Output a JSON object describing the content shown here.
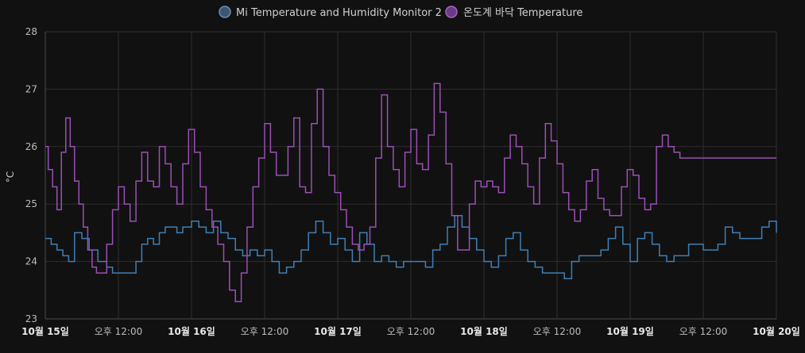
{
  "chart_data": {
    "type": "line",
    "step": true,
    "ylabel": "°C",
    "ylim": [
      23,
      28
    ],
    "yticks": [
      23,
      24,
      25,
      26,
      27,
      28
    ],
    "xlim": [
      0,
      5
    ],
    "x_unit": "days since 10월 15일 00:00",
    "x_ticks": [
      {
        "x": 0.0,
        "label": "10월 15일",
        "bold": true
      },
      {
        "x": 0.5,
        "label": "오후 12:00",
        "bold": false
      },
      {
        "x": 1.0,
        "label": "10월 16일",
        "bold": true
      },
      {
        "x": 1.5,
        "label": "오후 12:00",
        "bold": false
      },
      {
        "x": 2.0,
        "label": "10월 17일",
        "bold": true
      },
      {
        "x": 2.5,
        "label": "오후 12:00",
        "bold": false
      },
      {
        "x": 3.0,
        "label": "10월 18일",
        "bold": true
      },
      {
        "x": 3.5,
        "label": "오후 12:00",
        "bold": false
      },
      {
        "x": 4.0,
        "label": "10월 19일",
        "bold": true
      },
      {
        "x": 4.5,
        "label": "오후 12:00",
        "bold": false
      },
      {
        "x": 5.0,
        "label": "10월 20일",
        "bold": true
      }
    ],
    "grid": true,
    "legend_position": "top-center",
    "series": [
      {
        "name": "Mi Temperature and Humidity Monitor 2",
        "color": "#3f7fb5",
        "x": [
          0.0,
          0.04,
          0.08,
          0.12,
          0.16,
          0.2,
          0.25,
          0.3,
          0.36,
          0.42,
          0.46,
          0.5,
          0.54,
          0.58,
          0.62,
          0.66,
          0.7,
          0.74,
          0.78,
          0.82,
          0.86,
          0.9,
          0.94,
          1.0,
          1.05,
          1.1,
          1.15,
          1.2,
          1.25,
          1.3,
          1.35,
          1.4,
          1.45,
          1.5,
          1.55,
          1.6,
          1.65,
          1.7,
          1.75,
          1.8,
          1.85,
          1.9,
          1.95,
          2.0,
          2.05,
          2.1,
          2.15,
          2.2,
          2.25,
          2.3,
          2.35,
          2.4,
          2.45,
          2.5,
          2.55,
          2.6,
          2.65,
          2.7,
          2.75,
          2.8,
          2.85,
          2.9,
          2.95,
          3.0,
          3.05,
          3.1,
          3.15,
          3.2,
          3.25,
          3.3,
          3.35,
          3.4,
          3.45,
          3.5,
          3.55,
          3.6,
          3.65,
          3.7,
          3.75,
          3.8,
          3.85,
          3.9,
          3.95,
          4.0,
          4.05,
          4.1,
          4.15,
          4.2,
          4.25,
          4.3,
          4.35,
          4.4,
          4.45,
          4.5,
          4.55,
          4.6,
          4.65,
          4.7,
          4.75,
          4.8,
          4.85,
          4.9,
          4.95,
          5.0
        ],
        "values": [
          24.4,
          24.3,
          24.2,
          24.1,
          24.0,
          24.5,
          24.4,
          24.2,
          24.0,
          23.9,
          23.8,
          23.8,
          23.8,
          23.8,
          24.0,
          24.3,
          24.4,
          24.3,
          24.5,
          24.6,
          24.6,
          24.5,
          24.6,
          24.7,
          24.6,
          24.5,
          24.7,
          24.5,
          24.4,
          24.2,
          24.1,
          24.2,
          24.1,
          24.2,
          24.0,
          23.8,
          23.9,
          24.0,
          24.2,
          24.5,
          24.7,
          24.5,
          24.3,
          24.4,
          24.2,
          24.0,
          24.5,
          24.3,
          24.0,
          24.1,
          24.0,
          23.9,
          24.0,
          24.0,
          24.0,
          23.9,
          24.2,
          24.3,
          24.6,
          24.8,
          24.6,
          24.4,
          24.2,
          24.0,
          23.9,
          24.1,
          24.4,
          24.5,
          24.2,
          24.0,
          23.9,
          23.8,
          23.8,
          23.8,
          23.7,
          24.0,
          24.1,
          24.1,
          24.1,
          24.2,
          24.4,
          24.6,
          24.3,
          24.0,
          24.4,
          24.5,
          24.3,
          24.1,
          24.0,
          24.1,
          24.1,
          24.3,
          24.3,
          24.2,
          24.2,
          24.3,
          24.6,
          24.5,
          24.4,
          24.4,
          24.4,
          24.6,
          24.7,
          24.5
        ],
        "legend_fill": "#3b5675",
        "legend_stroke": "#6a8db3"
      },
      {
        "name": "온도계 바닥 Temperature",
        "color": "#9b4fb5",
        "x": [
          0.0,
          0.02,
          0.05,
          0.08,
          0.11,
          0.14,
          0.17,
          0.2,
          0.23,
          0.26,
          0.29,
          0.32,
          0.35,
          0.38,
          0.42,
          0.46,
          0.5,
          0.54,
          0.58,
          0.62,
          0.66,
          0.7,
          0.74,
          0.78,
          0.82,
          0.86,
          0.9,
          0.94,
          0.98,
          1.02,
          1.06,
          1.1,
          1.14,
          1.18,
          1.22,
          1.26,
          1.3,
          1.34,
          1.38,
          1.42,
          1.46,
          1.5,
          1.54,
          1.58,
          1.62,
          1.66,
          1.7,
          1.74,
          1.78,
          1.82,
          1.86,
          1.9,
          1.94,
          1.98,
          2.02,
          2.06,
          2.1,
          2.14,
          2.18,
          2.22,
          2.26,
          2.3,
          2.34,
          2.38,
          2.42,
          2.46,
          2.5,
          2.54,
          2.58,
          2.62,
          2.66,
          2.7,
          2.74,
          2.78,
          2.82,
          2.86,
          2.9,
          2.94,
          2.98,
          3.02,
          3.06,
          3.1,
          3.14,
          3.18,
          3.22,
          3.26,
          3.3,
          3.34,
          3.38,
          3.42,
          3.46,
          3.5,
          3.54,
          3.58,
          3.62,
          3.66,
          3.7,
          3.74,
          3.78,
          3.82,
          3.86,
          3.9,
          3.94,
          3.98,
          4.02,
          4.06,
          4.1,
          4.14,
          4.18,
          4.22,
          4.26,
          4.3,
          4.34,
          4.38,
          4.42,
          4.46,
          4.5,
          4.54,
          4.58,
          4.62,
          4.66,
          4.7,
          4.74,
          4.78,
          4.82,
          4.86,
          4.9,
          4.94,
          4.98,
          5.0
        ],
        "values": [
          26.0,
          25.6,
          25.3,
          24.9,
          25.9,
          26.5,
          26.0,
          25.4,
          25.0,
          24.6,
          24.2,
          23.9,
          23.8,
          23.8,
          24.3,
          24.9,
          25.3,
          25.0,
          24.7,
          25.4,
          25.9,
          25.4,
          25.3,
          26.0,
          25.7,
          25.3,
          25.0,
          25.7,
          26.3,
          25.9,
          25.3,
          24.9,
          24.6,
          24.3,
          24.0,
          23.5,
          23.3,
          23.8,
          24.6,
          25.3,
          25.8,
          26.4,
          25.9,
          25.5,
          25.5,
          26.0,
          26.5,
          25.3,
          25.2,
          26.4,
          27.0,
          26.0,
          25.5,
          25.2,
          24.9,
          24.6,
          24.3,
          24.2,
          24.3,
          24.6,
          25.8,
          26.9,
          26.0,
          25.6,
          25.3,
          25.9,
          26.3,
          25.7,
          25.6,
          26.2,
          27.1,
          26.6,
          25.7,
          24.8,
          24.2,
          24.2,
          25.0,
          25.4,
          25.3,
          25.4,
          25.3,
          25.2,
          25.8,
          26.2,
          26.0,
          25.7,
          25.3,
          25.0,
          25.8,
          26.4,
          26.1,
          25.7,
          25.2,
          24.9,
          24.7,
          24.9,
          25.4,
          25.6,
          25.1,
          24.9,
          24.8,
          24.8,
          25.3,
          25.6,
          25.5,
          25.1,
          24.9,
          25.0,
          26.0,
          26.2,
          26.0,
          25.9,
          25.8,
          25.8,
          25.8,
          25.8,
          25.8,
          25.8,
          25.8,
          25.8,
          25.8,
          25.8,
          25.8,
          25.8,
          25.8,
          25.8,
          25.8,
          25.8,
          25.8,
          25.8
        ],
        "legend_fill": "#6d3a85",
        "legend_stroke": "#a365bf"
      }
    ]
  }
}
